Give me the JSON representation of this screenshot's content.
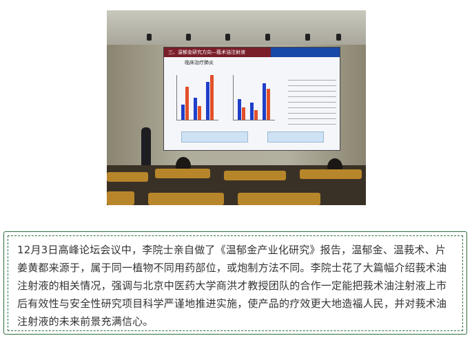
{
  "photo": {
    "slide_title": "三、温郁金研究方向—莪术油注射液",
    "slide_subtitle": "临床治疗肺炎"
  },
  "caption": {
    "text": "12月3日高峰论坛会议中，李院士亲自做了《温郁金产业化研究》报告，温郁金、温莪术、片姜黄都来源于，属于同一植物不同用药部位，或炮制方法不同。李院士花了大篇幅介绍莪术油注射液的相关情况，强调与北京中医药大学商洪才教授团队的合作一定能把莪术油注射液上市后有效性与安全性研究项目科学严谨地推进实施，使产品的疗效更大地造福人民，并对莪术油注射液的未来前景充满信心。"
  },
  "colors": {
    "border": "#2e6b3c",
    "slide_title_bg": "#7a1e2a",
    "bar_blue": "#1f3fc8",
    "bar_red": "#e2502a"
  }
}
